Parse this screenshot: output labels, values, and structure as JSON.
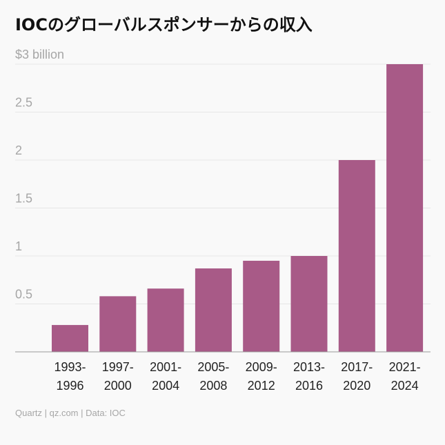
{
  "chart_data": {
    "type": "bar",
    "title": "IOCのグローバルスポンサーからの収入",
    "ylabel": "$3 billion",
    "categories": [
      [
        "1993-",
        "1996"
      ],
      [
        "1997-",
        "2000"
      ],
      [
        "2001-",
        "2004"
      ],
      [
        "2005-",
        "2008"
      ],
      [
        "2009-",
        "2012"
      ],
      [
        "2013-",
        "2016"
      ],
      [
        "2017-",
        "2020"
      ],
      [
        "2021-",
        "2024"
      ]
    ],
    "values": [
      0.28,
      0.58,
      0.66,
      0.87,
      0.95,
      1.0,
      2.0,
      3.0
    ],
    "ylim": [
      0,
      3
    ],
    "yticks": [
      {
        "value": 0.5,
        "label": "0.5"
      },
      {
        "value": 1,
        "label": "1"
      },
      {
        "value": 1.5,
        "label": "1.5"
      },
      {
        "value": 2,
        "label": "2"
      },
      {
        "value": 2.5,
        "label": "2.5"
      },
      {
        "value": 3,
        "label": "$3 billion"
      }
    ],
    "grid": true,
    "bar_color": "#a85a87",
    "grid_color": "#e6e6e6",
    "axis_color": "#999999"
  },
  "footer": "Quartz | qz.com | Data: IOC"
}
